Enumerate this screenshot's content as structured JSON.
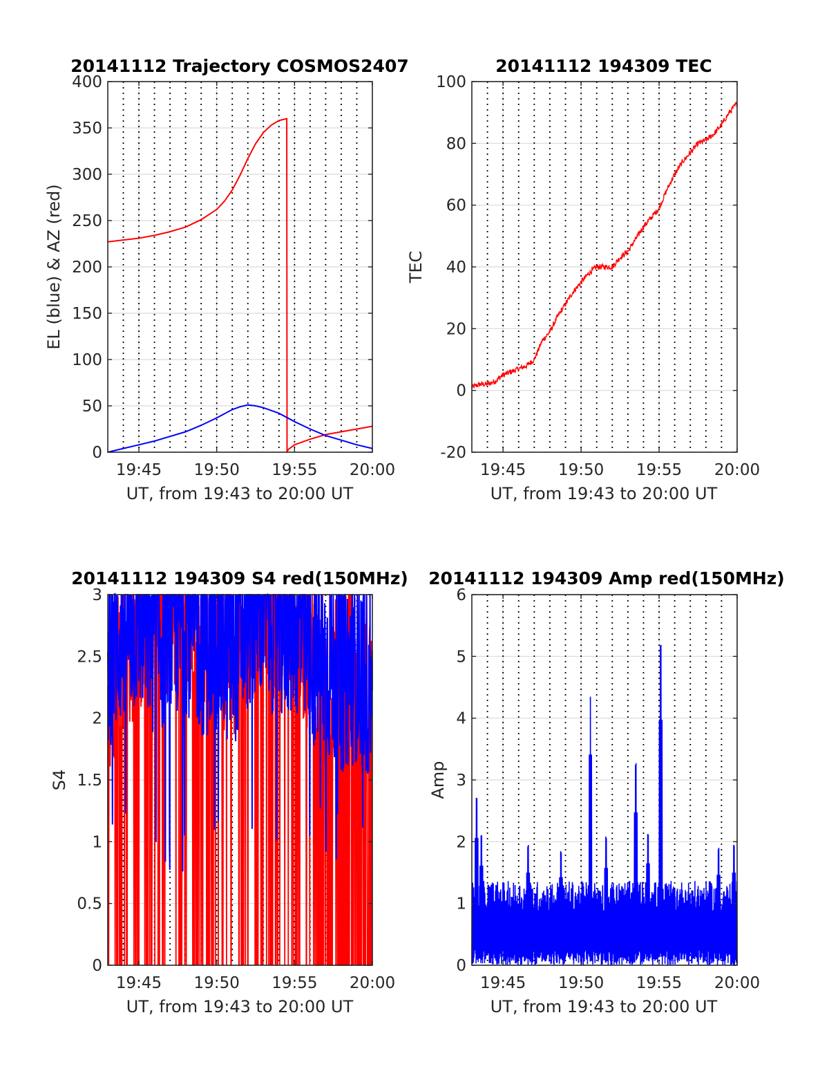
{
  "chart_data": [
    {
      "type": "line",
      "title": "20141112 Trajectory COSMOS2407",
      "xlabel": "UT, from 19:43 to 20:00 UT",
      "ylabel": "EL (blue) & AZ (red)",
      "xlim": [
        43,
        60
      ],
      "ylim": [
        0,
        400
      ],
      "xticks": [
        45,
        50,
        55,
        60
      ],
      "xticklabels": [
        "19:45",
        "19:50",
        "19:55",
        "20:00"
      ],
      "yticks": [
        0,
        50,
        100,
        150,
        200,
        250,
        300,
        350,
        400
      ],
      "yticklabels": [
        "0",
        "50",
        "100",
        "150",
        "200",
        "250",
        "300",
        "350",
        "400"
      ],
      "grid": true,
      "vlines": [
        44,
        45,
        46,
        47,
        48,
        49,
        50,
        51,
        52,
        53,
        54,
        55,
        56,
        57,
        58,
        59
      ],
      "series": [
        {
          "color": "#ff0000",
          "x": [
            43,
            44,
            45,
            46,
            47,
            48,
            49,
            50,
            50.5,
            51,
            51.5,
            52,
            52.5,
            53,
            53.5,
            54,
            54.5,
            54.52,
            54.6,
            55,
            56,
            57,
            58,
            59,
            60
          ],
          "y": [
            227,
            229,
            231,
            234,
            238,
            243,
            251,
            262,
            271,
            283,
            299,
            317,
            333,
            345,
            353,
            358,
            360,
            0,
            3,
            8,
            14,
            19,
            22,
            25,
            28
          ]
        },
        {
          "color": "#0000ff",
          "x": [
            43,
            44,
            45,
            46,
            47,
            48,
            49,
            50,
            51,
            51.5,
            52,
            52.5,
            53,
            54,
            55,
            56,
            57,
            58,
            59,
            60
          ],
          "y": [
            0,
            4,
            8,
            12,
            17,
            22,
            29,
            37,
            46,
            49,
            51,
            50,
            48,
            42,
            33,
            25,
            18,
            13,
            8,
            4
          ]
        }
      ]
    },
    {
      "type": "line",
      "title": "20141112 194309 TEC",
      "xlabel": "UT, from 19:43 to 20:00 UT",
      "ylabel": "TEC",
      "xlim": [
        43,
        60
      ],
      "ylim": [
        -20,
        100
      ],
      "xticks": [
        45,
        50,
        55,
        60
      ],
      "xticklabels": [
        "19:45",
        "19:50",
        "19:55",
        "20:00"
      ],
      "yticks": [
        -20,
        0,
        20,
        40,
        60,
        80,
        100
      ],
      "yticklabels": [
        "-20",
        "0",
        "20",
        "40",
        "60",
        "80",
        "100"
      ],
      "grid": true,
      "vlines": [
        44,
        45,
        46,
        47,
        48,
        49,
        50,
        51,
        52,
        53,
        54,
        55,
        56,
        57,
        58,
        59
      ],
      "series": [
        {
          "color": "#ff0000",
          "noise": 0.9,
          "x": [
            43,
            43.5,
            44,
            44.5,
            45,
            45.5,
            46,
            46.5,
            47,
            47.5,
            48,
            48.5,
            49,
            49.5,
            50,
            50.5,
            51,
            51.5,
            52,
            52.5,
            53,
            53.5,
            54,
            54.5,
            55,
            55.5,
            56,
            56.5,
            57,
            57.5,
            58,
            58.5,
            59,
            59.5,
            60
          ],
          "y": [
            1,
            2,
            2,
            3,
            5,
            6,
            7,
            8,
            10,
            16,
            19,
            24,
            28,
            32,
            35,
            38,
            40,
            40,
            40,
            43,
            45,
            49,
            53,
            56,
            59,
            65,
            70,
            74,
            77,
            80,
            81,
            83,
            86,
            90,
            93
          ]
        }
      ]
    },
    {
      "type": "line",
      "title": "20141112 194309 S4 red(150MHz)",
      "xlabel": "UT, from 19:43 to 20:00 UT",
      "ylabel": "S4",
      "xlim": [
        43,
        60
      ],
      "ylim": [
        0,
        3
      ],
      "xticks": [
        45,
        50,
        55,
        60
      ],
      "xticklabels": [
        "19:45",
        "19:50",
        "19:55",
        "20:00"
      ],
      "yticks": [
        0,
        0.5,
        1,
        1.5,
        2,
        2.5,
        3
      ],
      "yticklabels": [
        "0",
        "0.5",
        "1",
        "1.5",
        "2",
        "2.5",
        "3"
      ],
      "grid": true,
      "vlines": [
        44,
        45,
        46,
        47,
        48,
        49,
        50,
        51,
        52,
        53,
        54,
        55,
        56,
        57,
        58,
        59
      ],
      "series": [
        {
          "color": "#ff0000",
          "profile": "s4-red",
          "x": [
            43,
            44,
            45,
            46,
            47,
            48,
            49,
            50,
            51,
            52,
            53,
            54,
            55,
            56,
            57,
            58,
            59,
            60
          ],
          "y": [
            1.9,
            2.2,
            2.4,
            2.3,
            2.5,
            2.6,
            2.4,
            2.3,
            2.2,
            2.5,
            2.6,
            2.4,
            2.5,
            2.2,
            2.0,
            2.1,
            2.2,
            2.0
          ]
        },
        {
          "color": "#0000ff",
          "profile": "s4-blue",
          "x": [
            43,
            44,
            45,
            46,
            47,
            48,
            49,
            50,
            51,
            52,
            53,
            54,
            55,
            56,
            57,
            58,
            59,
            60
          ],
          "y": [
            2.3,
            2.5,
            2.6,
            2.4,
            2.5,
            2.6,
            2.4,
            2.4,
            2.3,
            2.6,
            2.7,
            2.5,
            2.6,
            2.3,
            2.2,
            2.1,
            2.2,
            2.0
          ]
        }
      ]
    },
    {
      "type": "line",
      "title": "20141112 194309 Amp red(150MHz)",
      "xlabel": "UT, from 19:43 to 20:00 UT",
      "ylabel": "Amp",
      "xlim": [
        43,
        60
      ],
      "ylim": [
        0,
        6
      ],
      "xticks": [
        45,
        50,
        55,
        60
      ],
      "xticklabels": [
        "19:45",
        "19:50",
        "19:55",
        "20:00"
      ],
      "yticks": [
        0,
        1,
        2,
        3,
        4,
        5,
        6
      ],
      "yticklabels": [
        "0",
        "1",
        "2",
        "3",
        "4",
        "5",
        "6"
      ],
      "grid": true,
      "vlines": [
        44,
        45,
        46,
        47,
        48,
        49,
        50,
        51,
        52,
        53,
        54,
        55,
        56,
        57,
        58,
        59
      ],
      "series": [
        {
          "color": "#0000ff",
          "profile": "amp",
          "baseline": 1.3,
          "peaks_x": [
            43.3,
            43.6,
            46.6,
            48.7,
            50.6,
            51.6,
            53.5,
            54.3,
            55.1,
            58.8,
            59.8
          ],
          "peaks_y": [
            2.75,
            2.15,
            2.0,
            1.9,
            4.55,
            2.1,
            3.3,
            2.2,
            5.3,
            1.95,
            2.0
          ]
        }
      ]
    }
  ]
}
